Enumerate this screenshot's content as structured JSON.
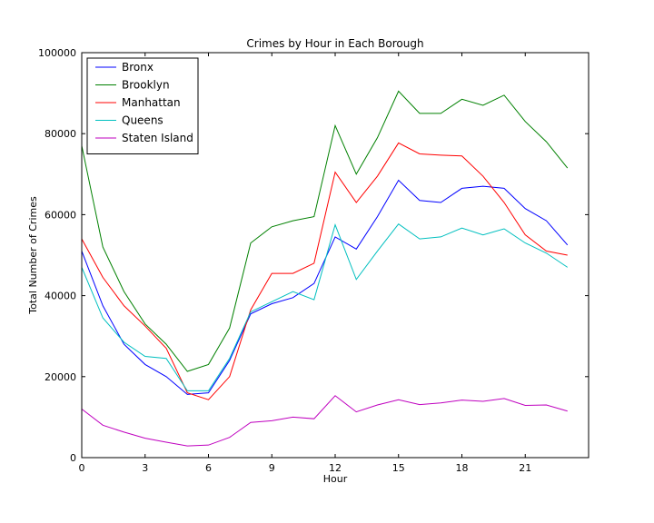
{
  "chart_data": {
    "type": "line",
    "title": "Crimes by Hour in Each Borough",
    "xlabel": "Hour",
    "ylabel": "Total Number of Crimes",
    "xlim": [
      0,
      24
    ],
    "ylim": [
      0,
      100000
    ],
    "xticks": [
      0,
      3,
      6,
      9,
      12,
      15,
      18,
      21
    ],
    "yticks": [
      0,
      20000,
      40000,
      60000,
      80000,
      100000
    ],
    "grid": false,
    "legend_position": "top-left",
    "x": [
      0,
      1,
      2,
      3,
      4,
      5,
      6,
      7,
      8,
      9,
      10,
      11,
      12,
      13,
      14,
      15,
      16,
      17,
      18,
      19,
      20,
      21,
      22,
      23
    ],
    "series": [
      {
        "name": "Bronx",
        "color": "#0000ff",
        "values": [
          51000,
          37500,
          28000,
          23000,
          20000,
          15600,
          16000,
          24000,
          35500,
          38000,
          39500,
          43000,
          54500,
          51500,
          59500,
          68500,
          63500,
          63000,
          66500,
          67000,
          66500,
          61500,
          58500,
          52500
        ]
      },
      {
        "name": "Brooklyn",
        "color": "#008000",
        "values": [
          77000,
          52000,
          41000,
          33000,
          28000,
          21300,
          23000,
          32000,
          53000,
          57000,
          58500,
          59500,
          82000,
          70000,
          79000,
          90500,
          85000,
          85000,
          88500,
          87000,
          89500,
          83000,
          78000,
          71500
        ]
      },
      {
        "name": "Manhattan",
        "color": "#ff0000",
        "values": [
          54000,
          44500,
          37500,
          32500,
          27000,
          16000,
          14300,
          20000,
          36500,
          45500,
          45500,
          48000,
          70500,
          63000,
          69500,
          77700,
          75000,
          74700,
          74500,
          69500,
          63000,
          55000,
          51000,
          50000
        ]
      },
      {
        "name": "Queens",
        "color": "#00bfbf",
        "values": [
          47000,
          34500,
          28500,
          25000,
          24500,
          16500,
          16500,
          24500,
          36000,
          38500,
          41000,
          39000,
          57500,
          44000,
          51000,
          57700,
          54000,
          54500,
          56700,
          55000,
          56500,
          53000,
          50500,
          47000
        ]
      },
      {
        "name": "Staten Island",
        "color": "#bf00bf",
        "values": [
          12000,
          8000,
          6300,
          4800,
          3800,
          2900,
          3100,
          5000,
          8700,
          9100,
          10000,
          9600,
          15300,
          11300,
          13000,
          14300,
          13100,
          13500,
          14200,
          13900,
          14600,
          12900,
          13000,
          11500
        ]
      }
    ]
  }
}
